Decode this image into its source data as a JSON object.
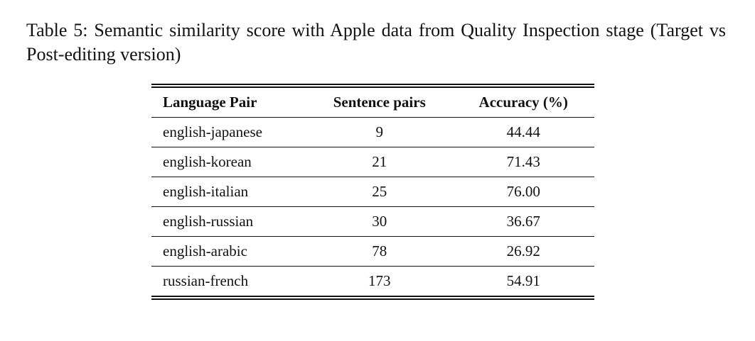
{
  "caption": "Table 5:  Semantic similarity score with Apple data from Quality Inspection stage (Target vs Post-editing version)",
  "table": {
    "headers": [
      "Language Pair",
      "Sentence pairs",
      "Accuracy (%)"
    ],
    "rows": [
      [
        "english-japanese",
        "9",
        "44.44"
      ],
      [
        "english-korean",
        "21",
        "71.43"
      ],
      [
        "english-italian",
        "25",
        "76.00"
      ],
      [
        "english-russian",
        "30",
        "36.67"
      ],
      [
        "english-arabic",
        "78",
        "26.92"
      ],
      [
        "russian-french",
        "173",
        "54.91"
      ]
    ]
  }
}
